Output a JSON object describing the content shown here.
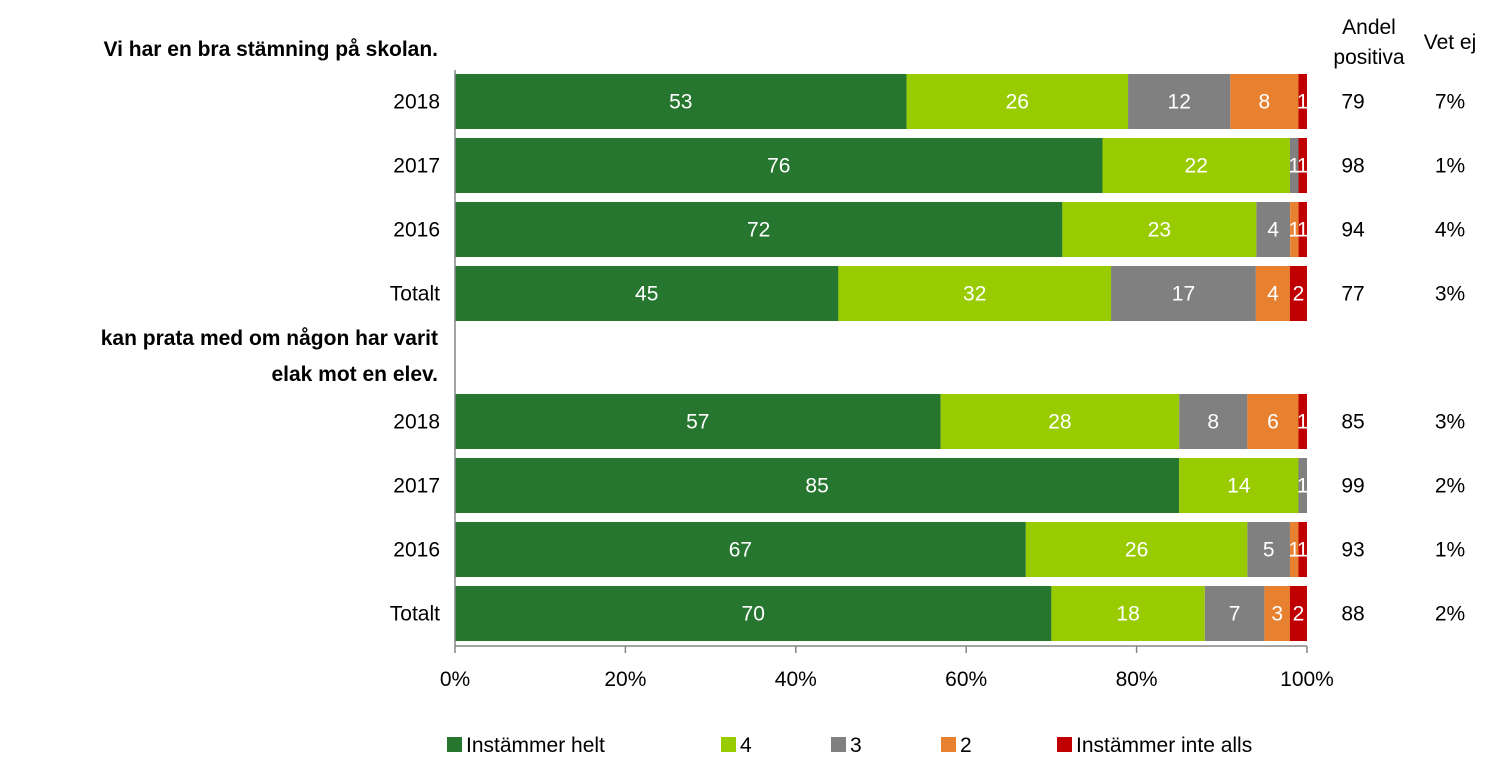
{
  "chart_data": {
    "type": "bar",
    "orientation": "horizontal",
    "stacked": true,
    "xlim": [
      0,
      100
    ],
    "xticks": [
      "0%",
      "20%",
      "40%",
      "60%",
      "80%",
      "100%"
    ],
    "column_headers": {
      "positive_line1": "Andel",
      "positive_line2": "positiva",
      "unknown": "Vet ej"
    },
    "legend_position": "bottom",
    "series": [
      {
        "name": "Instämmer helt",
        "color": "#26762f"
      },
      {
        "name": "4",
        "color": "#99cc00"
      },
      {
        "name": "3",
        "color": "#808080"
      },
      {
        "name": "2",
        "color": "#e8812f"
      },
      {
        "name": "Instämmer inte alls",
        "color": "#c00000"
      }
    ],
    "groups": [
      {
        "title_lines": [
          "Vi har en bra stämning på skolan."
        ],
        "rows": [
          {
            "label": "2018",
            "values": [
              53,
              26,
              12,
              8,
              1
            ],
            "positive": "79",
            "unknown": "7%"
          },
          {
            "label": "2017",
            "values": [
              76,
              22,
              1,
              0,
              1
            ],
            "value_labels": [
              "76",
              "22",
              "1",
              "",
              "1"
            ],
            "positive": "98",
            "unknown": "1%"
          },
          {
            "label": "2016",
            "values": [
              72,
              23,
              4,
              1,
              1
            ],
            "positive": "94",
            "unknown": "4%"
          },
          {
            "label": "Totalt",
            "values": [
              45,
              32,
              17,
              4,
              2
            ],
            "positive": "77",
            "unknown": "3%"
          }
        ]
      },
      {
        "title_lines": [
          "kan prata med om någon har varit",
          "elak mot en elev."
        ],
        "rows": [
          {
            "label": "2018",
            "values": [
              57,
              28,
              8,
              6,
              1
            ],
            "positive": "85",
            "unknown": "3%"
          },
          {
            "label": "2017",
            "values": [
              85,
              14,
              1,
              0,
              0
            ],
            "value_labels": [
              "85",
              "14",
              "1",
              "",
              ""
            ],
            "positive": "99",
            "unknown": "2%"
          },
          {
            "label": "2016",
            "values": [
              67,
              26,
              5,
              1,
              1
            ],
            "positive": "93",
            "unknown": "1%"
          },
          {
            "label": "Totalt",
            "values": [
              70,
              18,
              7,
              3,
              2
            ],
            "positive": "88",
            "unknown": "2%"
          }
        ]
      }
    ]
  }
}
